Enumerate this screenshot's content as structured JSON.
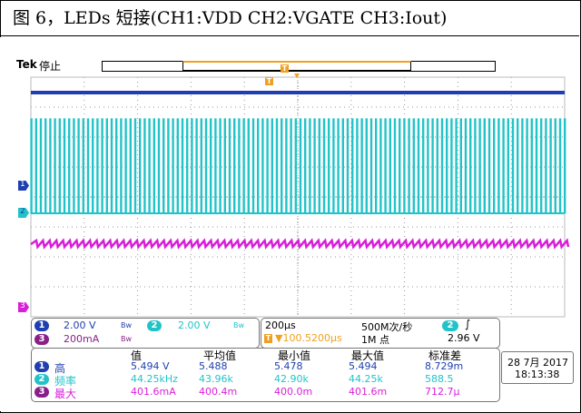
{
  "caption": "图 6，LEDs 短接(CH1:VDD   CH2:VGATE   CH3:Iout)",
  "scope": {
    "brand": "Tek",
    "run_state": "停止",
    "trigger_marker": "T",
    "ch_markers": {
      "ch1": "1",
      "ch2": "2",
      "ch3": "3"
    },
    "colors": {
      "ch1": "#1f3fb0",
      "ch2": "#22c3c8",
      "ch3": "#d81fd8",
      "trigger": "#f0a020",
      "grid": "#9a9a9a"
    }
  },
  "settings": {
    "ch1": {
      "badge": "1",
      "scale": "2.00 V",
      "coupling_icon": "bandwidth-limit-icon"
    },
    "ch2": {
      "badge": "2",
      "scale": "2.00 V",
      "coupling_icon": "bandwidth-limit-icon"
    },
    "ch3": {
      "badge": "3",
      "scale": "200mA",
      "coupling_icon": "bandwidth-limit-icon"
    },
    "timebase": "200μs",
    "trigger_pos": "▼100.5200μs",
    "sample_rate": "500M次/秒",
    "record_length": "1M 点",
    "trig_source": "2",
    "trig_slope": "∫",
    "trig_level": "2.96 V"
  },
  "measurements": {
    "headers": [
      "值",
      "平均值",
      "最小值",
      "最大值",
      "标准差"
    ],
    "rows": [
      {
        "badge": "1",
        "label": "高",
        "values": [
          "5.494 V",
          "5.488",
          "5.478",
          "5.494",
          "8.729m"
        ]
      },
      {
        "badge": "2",
        "label": "频率",
        "values": [
          "44.25kHz",
          "43.96k",
          "42.90k",
          "44.25k",
          "588.5"
        ]
      },
      {
        "badge": "3",
        "label": "最大",
        "values": [
          "401.6mA",
          "400.4m",
          "400.0m",
          "401.6m",
          "712.7μ"
        ]
      }
    ]
  },
  "datetime": {
    "date": "28 7月 2017",
    "time": "18:13:38"
  }
}
